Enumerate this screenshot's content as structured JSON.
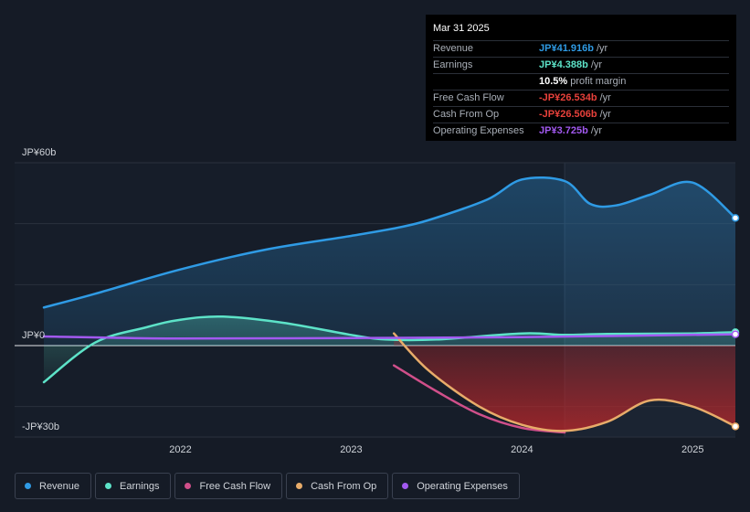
{
  "chart_data": {
    "type": "area",
    "title": "",
    "y_unit_labels": {
      "top": "JP¥60b",
      "zero": "JP¥0",
      "bottom": "-JP¥30b"
    },
    "ylim": [
      -30,
      60
    ],
    "xlim": [
      2021.2,
      2025.25
    ],
    "past_divider_x": 2024.25,
    "x_ticks": [
      {
        "value": 2022,
        "label": "2022"
      },
      {
        "value": 2023,
        "label": "2023"
      },
      {
        "value": 2024,
        "label": "2024"
      },
      {
        "value": 2025,
        "label": "2025"
      }
    ],
    "series": [
      {
        "name": "Revenue",
        "color": "#2f9be5",
        "fill": true,
        "points": [
          [
            2021.2,
            12.5
          ],
          [
            2021.5,
            17
          ],
          [
            2022.0,
            25
          ],
          [
            2022.5,
            31.5
          ],
          [
            2023.0,
            36
          ],
          [
            2023.3,
            39
          ],
          [
            2023.5,
            42
          ],
          [
            2023.8,
            48
          ],
          [
            2024.0,
            54.5
          ],
          [
            2024.25,
            54
          ],
          [
            2024.4,
            46.5
          ],
          [
            2024.55,
            46
          ],
          [
            2024.75,
            49.5
          ],
          [
            2025.0,
            53.5
          ],
          [
            2025.25,
            41.9
          ]
        ],
        "end_value": 41.916
      },
      {
        "name": "Earnings",
        "color": "#5de3c8",
        "fill": true,
        "points": [
          [
            2021.2,
            -12
          ],
          [
            2021.5,
            1
          ],
          [
            2021.8,
            6
          ],
          [
            2022.0,
            8.5
          ],
          [
            2022.25,
            9.5
          ],
          [
            2022.6,
            7.5
          ],
          [
            2023.0,
            3.5
          ],
          [
            2023.2,
            2
          ],
          [
            2023.5,
            2
          ],
          [
            2024.0,
            4
          ],
          [
            2024.25,
            3.5
          ],
          [
            2024.5,
            3.8
          ],
          [
            2025.0,
            4
          ],
          [
            2025.25,
            4.388
          ]
        ],
        "end_value": 4.388
      },
      {
        "name": "Free Cash Flow",
        "color": "#d04f8a",
        "fill": false,
        "points": [
          [
            2023.25,
            -6.5
          ],
          [
            2023.5,
            -15
          ],
          [
            2023.75,
            -22.5
          ],
          [
            2024.0,
            -27
          ],
          [
            2024.25,
            -28.5
          ]
        ],
        "end_value": -26.534
      },
      {
        "name": "Cash From Op",
        "color": "#e8ac6a",
        "fill": true,
        "points": [
          [
            2023.25,
            4
          ],
          [
            2023.45,
            -8
          ],
          [
            2023.75,
            -20
          ],
          [
            2024.0,
            -26
          ],
          [
            2024.25,
            -28
          ],
          [
            2024.5,
            -25
          ],
          [
            2024.75,
            -18
          ],
          [
            2025.0,
            -20
          ],
          [
            2025.25,
            -26.5
          ]
        ],
        "end_value": -26.506
      },
      {
        "name": "Operating Expenses",
        "color": "#a259f0",
        "fill": false,
        "points": [
          [
            2021.2,
            3
          ],
          [
            2022.0,
            2.3
          ],
          [
            2023.0,
            2.5
          ],
          [
            2024.0,
            2.8
          ],
          [
            2025.25,
            3.725
          ]
        ],
        "end_value": 3.725
      }
    ]
  },
  "tooltip": {
    "date": "Mar 31 2025",
    "rows": [
      {
        "label": "Revenue",
        "value": "JP¥41.916b",
        "unit": "/yr",
        "color": "#2f9be5"
      },
      {
        "label": "Earnings",
        "value": "JP¥4.388b",
        "unit": "/yr",
        "color": "#5de3c8"
      },
      {
        "label": "",
        "value": "10.5%",
        "unit": "profit margin",
        "color": "#ffffff"
      },
      {
        "label": "Free Cash Flow",
        "value": "-JP¥26.534b",
        "unit": "/yr",
        "color": "#e8413b"
      },
      {
        "label": "Cash From Op",
        "value": "-JP¥26.506b",
        "unit": "/yr",
        "color": "#e8413b"
      },
      {
        "label": "Operating Expenses",
        "value": "JP¥3.725b",
        "unit": "/yr",
        "color": "#a259f0"
      }
    ]
  },
  "legend": [
    {
      "label": "Revenue",
      "color": "#2f9be5"
    },
    {
      "label": "Earnings",
      "color": "#5de3c8"
    },
    {
      "label": "Free Cash Flow",
      "color": "#d04f8a"
    },
    {
      "label": "Cash From Op",
      "color": "#e8ac6a"
    },
    {
      "label": "Operating Expenses",
      "color": "#a259f0"
    }
  ]
}
